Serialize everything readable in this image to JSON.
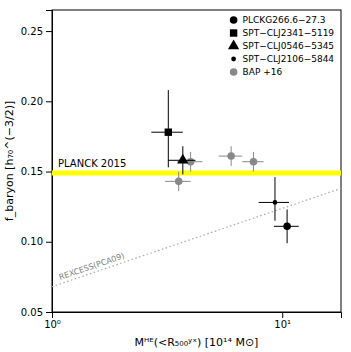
{
  "chart_data": {
    "type": "scatter",
    "log": "x",
    "grid": false,
    "legend": "upper right",
    "xlabel": "Mᴴᴱ(<R₅₀₀ʸˣ) [10¹⁴ M⊙]",
    "ylabel": "f_baryon [h₇₀^(−3/2)]",
    "xlim": [
      1.0,
      18.0
    ],
    "ylim": [
      0.05,
      0.265
    ],
    "xticks": [
      {
        "value": 1,
        "label": "10⁰"
      },
      {
        "value": 10,
        "label": "10¹"
      }
    ],
    "yticks": [
      0.05,
      {
        "value": 0.1,
        "label": "0.10"
      },
      0.15,
      {
        "value": 0.2,
        "label": "0.20"
      },
      0.25
    ],
    "series": [
      {
        "name": "PLCKG266.6−27.3",
        "color": "black",
        "marker": "circle",
        "x": [
          10.5
        ],
        "values": [
          0.111
        ],
        "xerr_lo": [
          1.3
        ],
        "xerr_hi": [
          1.3
        ],
        "yerr_lo": [
          0.012
        ],
        "yerr_hi": [
          0.012
        ]
      },
      {
        "name": "SPT−CLJ2341−5119",
        "color": "black",
        "marker": "square",
        "x": [
          3.2
        ],
        "values": [
          0.178
        ],
        "xerr_lo": [
          0.5
        ],
        "xerr_hi": [
          0.5
        ],
        "yerr_lo": [
          0.025
        ],
        "yerr_hi": [
          0.03
        ]
      },
      {
        "name": "SPT−CLJ0546−5345",
        "color": "black",
        "marker": "triangle",
        "x": [
          3.7
        ],
        "values": [
          0.158
        ],
        "xerr_lo": [
          0.5
        ],
        "xerr_hi": [
          0.5
        ],
        "yerr_lo": [
          0.01
        ],
        "yerr_hi": [
          0.01
        ]
      },
      {
        "name": "SPT−CLJ2106−5844",
        "color": "black",
        "marker": "point",
        "x": [
          9.3
        ],
        "values": [
          0.128
        ],
        "xerr_lo": [
          1.4
        ],
        "xerr_hi": [
          1.4
        ],
        "yerr_lo": [
          0.013
        ],
        "yerr_hi": [
          0.018
        ]
      },
      {
        "name": "BAP +16",
        "color": "#888888",
        "marker": "circle",
        "x": [
          4.0,
          3.55,
          6.0,
          7.5
        ],
        "values": [
          0.157,
          0.143,
          0.161,
          0.157
        ],
        "xerr_lo": [
          0.5,
          0.45,
          0.7,
          0.8
        ],
        "xerr_hi": [
          0.5,
          0.45,
          0.7,
          0.8
        ],
        "yerr_lo": [
          0.007,
          0.007,
          0.007,
          0.007
        ],
        "yerr_hi": [
          0.007,
          0.007,
          0.007,
          0.007
        ]
      }
    ],
    "reference_lines": [
      {
        "label": "PLANCK 2015",
        "y": 0.149,
        "color": "yellow"
      },
      {
        "label": "REXCESS(PCA09)",
        "x": [
          1.0,
          18.0
        ],
        "y": [
          0.068,
          0.138
        ],
        "color": "#aaaaaa",
        "line_style": "dotted"
      }
    ]
  }
}
